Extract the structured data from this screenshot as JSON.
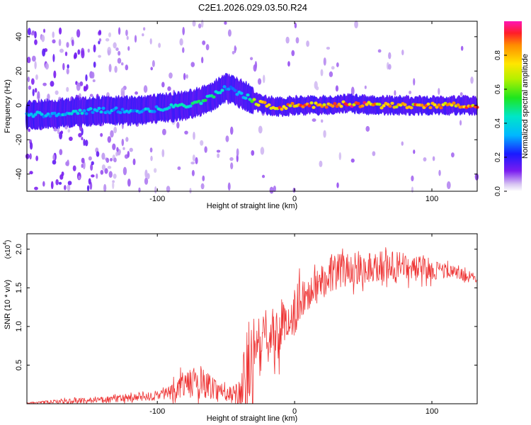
{
  "title": "C2E1.2026.029.03.50.R24",
  "colors": {
    "snr_line": "#ee3333",
    "background": "#ffffff"
  },
  "chart_data": [
    {
      "type": "heatmap",
      "title": "C2E1.2026.029.03.50.R24",
      "xlabel": "Height of straight line (km)",
      "ylabel": "Frequency (Hz)",
      "xlim": [
        -195,
        133
      ],
      "ylim": [
        -50,
        49
      ],
      "xticks": [
        -100,
        0,
        100
      ],
      "xtick_labels": [
        "-100",
        "0",
        "100"
      ],
      "yticks": [
        -40,
        -20,
        0,
        20,
        40
      ],
      "ytick_labels": [
        "-40",
        "-20",
        "0",
        "20",
        "40"
      ],
      "colorbar": {
        "label": "Normalized spectral amplitude",
        "range": [
          0,
          1
        ],
        "ticks": [
          0.0,
          0.2,
          0.4,
          0.6,
          0.8
        ],
        "tick_labels": [
          "0.0",
          "0.2",
          "0.4",
          "0.6",
          "0.8"
        ],
        "colormap": "rainbow (white → violet → blue → cyan → green → yellow → red → magenta)"
      },
      "ridge": {
        "description": "peak frequency of spectral ridge vs height",
        "x": [
          -195,
          -180,
          -160,
          -140,
          -120,
          -100,
          -80,
          -70,
          -60,
          -55,
          -50,
          -45,
          -40,
          -35,
          -30,
          -25,
          -20,
          -10,
          0,
          20,
          40,
          60,
          80,
          100,
          120,
          133
        ],
        "y": [
          -6,
          -5,
          -4,
          -3,
          -3,
          -2,
          0,
          2,
          5,
          8,
          10,
          9,
          7,
          5,
          3,
          1,
          0,
          -1,
          0,
          0,
          1,
          0,
          0,
          0,
          0,
          0
        ],
        "peak_amplitude": [
          0.35,
          0.35,
          0.4,
          0.35,
          0.35,
          0.4,
          0.45,
          0.5,
          0.5,
          0.45,
          0.35,
          0.35,
          0.35,
          0.35,
          0.6,
          0.85,
          0.9,
          0.9,
          0.85,
          0.9,
          0.9,
          0.85,
          0.85,
          0.85,
          0.85,
          0.85
        ]
      }
    },
    {
      "type": "line",
      "xlabel": "Height of straight line (km)",
      "ylabel": "SNR (10 * v/v)",
      "scale_label": "(x10",
      "scale_exponent": "4",
      "xlim": [
        -195,
        133
      ],
      "ylim": [
        0,
        2.2
      ],
      "xticks": [
        -100,
        0,
        100
      ],
      "xtick_labels": [
        "-100",
        "0",
        "100"
      ],
      "yticks": [
        0.5,
        1.0,
        1.5,
        2.0
      ],
      "ytick_labels": [
        "0.5",
        "1.0",
        "1.5",
        "2.0"
      ],
      "series": [
        {
          "name": "SNR",
          "x": [
            -195,
            -180,
            -160,
            -140,
            -120,
            -100,
            -90,
            -80,
            -70,
            -60,
            -50,
            -45,
            -40,
            -35,
            -30,
            -25,
            -20,
            -15,
            -10,
            -5,
            0,
            5,
            10,
            15,
            20,
            25,
            30,
            40,
            50,
            60,
            70,
            80,
            90,
            100,
            110,
            120,
            133
          ],
          "y": [
            0.01,
            0.02,
            0.04,
            0.05,
            0.07,
            0.1,
            0.16,
            0.25,
            0.28,
            0.22,
            0.14,
            0.12,
            0.12,
            0.35,
            0.6,
            0.72,
            0.85,
            0.9,
            0.95,
            1.05,
            1.2,
            1.35,
            1.45,
            1.55,
            1.62,
            1.68,
            1.72,
            1.74,
            1.76,
            1.78,
            1.78,
            1.77,
            1.75,
            1.74,
            1.72,
            1.68,
            1.62
          ],
          "noise_amplitude": [
            0.01,
            0.02,
            0.04,
            0.04,
            0.05,
            0.06,
            0.1,
            0.18,
            0.2,
            0.16,
            0.1,
            0.1,
            0.25,
            0.6,
            0.7,
            0.35,
            0.35,
            0.35,
            0.35,
            0.32,
            0.3,
            0.3,
            0.28,
            0.26,
            0.24,
            0.24,
            0.24,
            0.22,
            0.22,
            0.22,
            0.2,
            0.18,
            0.16,
            0.14,
            0.1,
            0.08,
            0.06
          ]
        }
      ]
    }
  ]
}
